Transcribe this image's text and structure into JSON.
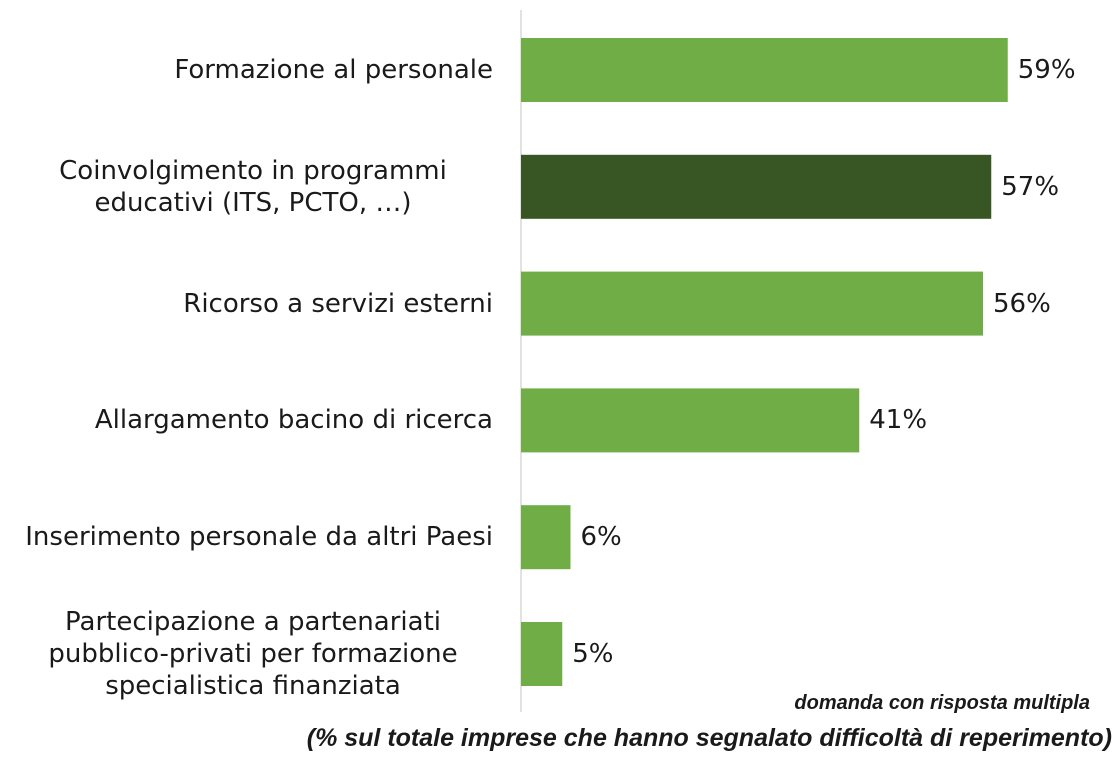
{
  "chart_data": {
    "type": "barh",
    "categories": [
      "Formazione al personale",
      "Coinvolgimento in programmi educativi (ITS, PCTO, …)",
      "Ricorso a servizi esterni",
      "Allargamento bacino di ricerca",
      "Inserimento personale da altri Paesi",
      "Partecipazione a partenariati pubblico-privati per formazione specialistica finanziata"
    ],
    "values": [
      59,
      57,
      56,
      41,
      6,
      5
    ],
    "value_labels": [
      "59%",
      "57%",
      "56%",
      "41%",
      "6%",
      "5%"
    ],
    "colors": [
      "#70ad47",
      "#375623",
      "#70ad47",
      "#70ad47",
      "#70ad47",
      "#70ad47"
    ],
    "annotations": [
      "domanda con risposta multipla",
      "(% sul totale imprese che hanno segnalato difficoltà di reperimento)"
    ]
  }
}
